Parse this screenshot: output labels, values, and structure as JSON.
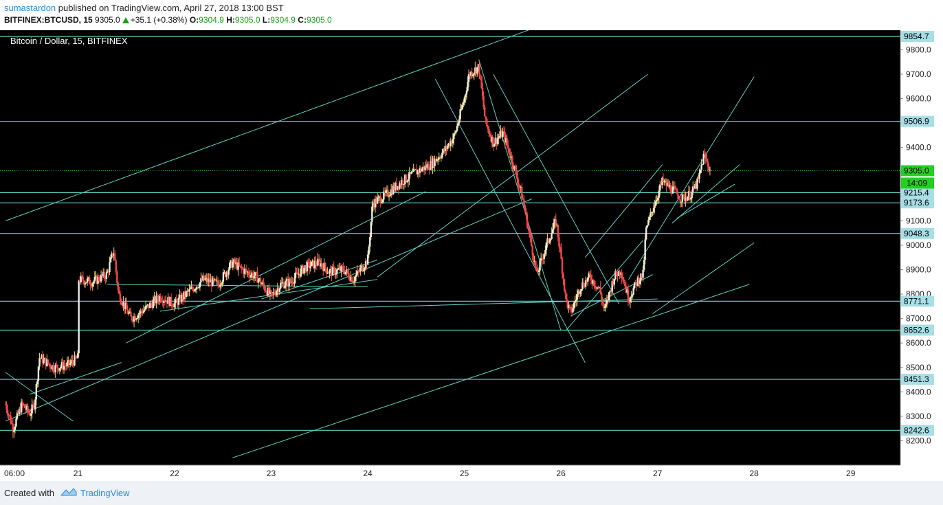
{
  "header": {
    "author": "sumastardon",
    "published_text": "published on TradingView.com, April 27, 2018 13:00 BST",
    "symbol": "BITFINEX:BTCUSD, 15",
    "last": "9305.0",
    "change": "+35.1 (+0.38%)",
    "o_label": "O:",
    "o_value": "9304.9",
    "h_label": "H:",
    "h_value": "9305.0",
    "l_label": "L:",
    "l_value": "9304.9",
    "c_label": "C:",
    "c_value": "9305.0"
  },
  "footer": {
    "created_label": "Created with",
    "brand": "TradingView"
  },
  "colors": {
    "background": "#000000",
    "up_candle": "#f0f0f0",
    "down_candle": "#b0b0b0",
    "line": "#5fd3c4",
    "level_label_bg": "#a8dfe6",
    "current_price_bg": "#21d021",
    "accent_blue": "#2a8ad6"
  },
  "chart_data": {
    "type": "candlestick",
    "title": "Bitcoin / Dollar, 15, BITFINEX",
    "interval": "15",
    "exchange": "BITFINEX",
    "ylim": [
      8100,
      9880
    ],
    "y_ticks": [
      8200,
      8300,
      8400,
      8500,
      8600,
      8700,
      8800,
      8900,
      9000,
      9100,
      9200,
      9300,
      9400,
      9500,
      9600,
      9700,
      9800
    ],
    "x_ticks": [
      "06:00",
      "21",
      "22",
      "23",
      "24",
      "25",
      "26",
      "27",
      "28",
      "29"
    ],
    "x_tick_days": [
      20.25,
      21,
      22,
      23,
      24,
      25,
      26,
      27,
      28,
      29
    ],
    "xlim_days": [
      20.25,
      29.5
    ],
    "horizontal_levels": [
      9854.7,
      9506.9,
      9215.4,
      9173.6,
      9048.3,
      8771.1,
      8652.6,
      8451.3,
      8242.6
    ],
    "current_price": 9305.0,
    "countdown": "14:09",
    "path_points": [
      [
        20.25,
        8350
      ],
      [
        20.33,
        8250
      ],
      [
        20.42,
        8350
      ],
      [
        20.5,
        8310
      ],
      [
        20.55,
        8350
      ],
      [
        20.6,
        8540
      ],
      [
        20.75,
        8500
      ],
      [
        20.9,
        8510
      ],
      [
        21.0,
        8540
      ],
      [
        21.0,
        8860
      ],
      [
        21.15,
        8850
      ],
      [
        21.3,
        8880
      ],
      [
        21.37,
        8980
      ],
      [
        21.42,
        8800
      ],
      [
        21.55,
        8700
      ],
      [
        21.7,
        8740
      ],
      [
        21.85,
        8790
      ],
      [
        22.0,
        8760
      ],
      [
        22.15,
        8810
      ],
      [
        22.3,
        8860
      ],
      [
        22.45,
        8840
      ],
      [
        22.6,
        8930
      ],
      [
        22.7,
        8900
      ],
      [
        22.85,
        8870
      ],
      [
        23.0,
        8790
      ],
      [
        23.1,
        8840
      ],
      [
        23.2,
        8850
      ],
      [
        23.35,
        8910
      ],
      [
        23.5,
        8930
      ],
      [
        23.6,
        8890
      ],
      [
        23.75,
        8900
      ],
      [
        23.85,
        8860
      ],
      [
        24.0,
        8940
      ],
      [
        24.05,
        9170
      ],
      [
        24.2,
        9210
      ],
      [
        24.35,
        9260
      ],
      [
        24.5,
        9300
      ],
      [
        24.65,
        9330
      ],
      [
        24.8,
        9390
      ],
      [
        24.9,
        9450
      ],
      [
        25.0,
        9600
      ],
      [
        25.05,
        9700
      ],
      [
        25.15,
        9730
      ],
      [
        25.22,
        9500
      ],
      [
        25.3,
        9420
      ],
      [
        25.4,
        9460
      ],
      [
        25.5,
        9340
      ],
      [
        25.6,
        9200
      ],
      [
        25.68,
        9030
      ],
      [
        25.75,
        8880
      ],
      [
        25.85,
        9000
      ],
      [
        25.95,
        9100
      ],
      [
        26.0,
        8950
      ],
      [
        26.05,
        8780
      ],
      [
        26.1,
        8720
      ],
      [
        26.2,
        8830
      ],
      [
        26.3,
        8870
      ],
      [
        26.4,
        8820
      ],
      [
        26.45,
        8730
      ],
      [
        26.55,
        8870
      ],
      [
        26.62,
        8900
      ],
      [
        26.7,
        8780
      ],
      [
        26.8,
        8860
      ],
      [
        26.85,
        8880
      ],
      [
        26.88,
        9060
      ],
      [
        26.95,
        9150
      ],
      [
        27.05,
        9260
      ],
      [
        27.15,
        9230
      ],
      [
        27.25,
        9190
      ],
      [
        27.35,
        9210
      ],
      [
        27.42,
        9260
      ],
      [
        27.48,
        9370
      ],
      [
        27.52,
        9330
      ],
      [
        27.55,
        9305
      ]
    ],
    "trend_lines": [
      [
        [
          20.25,
          9100
        ],
        [
          25.8,
          9900
        ]
      ],
      [
        [
          20.25,
          8280
        ],
        [
          25.7,
          9190
        ]
      ],
      [
        [
          20.25,
          8480
        ],
        [
          20.95,
          8280
        ]
      ],
      [
        [
          20.5,
          8390
        ],
        [
          21.45,
          8520
        ]
      ],
      [
        [
          21.3,
          8840
        ],
        [
          24.0,
          8830
        ]
      ],
      [
        [
          21.5,
          8600
        ],
        [
          24.6,
          9220
        ]
      ],
      [
        [
          21.85,
          8730
        ],
        [
          24.1,
          8860
        ]
      ],
      [
        [
          22.9,
          8780
        ],
        [
          24.1,
          8940
        ]
      ],
      [
        [
          24.1,
          8870
        ],
        [
          26.9,
          9700
        ]
      ],
      [
        [
          23.4,
          8740
        ],
        [
          27.0,
          8780
        ]
      ],
      [
        [
          24.7,
          9680
        ],
        [
          26.25,
          8520
        ]
      ],
      [
        [
          25.15,
          9760
        ],
        [
          26.0,
          8650
        ]
      ],
      [
        [
          25.3,
          9700
        ],
        [
          26.6,
          8760
        ]
      ],
      [
        [
          26.05,
          8650
        ],
        [
          26.85,
          9020
        ]
      ],
      [
        [
          26.1,
          8710
        ],
        [
          26.95,
          8880
        ]
      ],
      [
        [
          26.25,
          8950
        ],
        [
          27.05,
          9330
        ]
      ],
      [
        [
          26.7,
          8860
        ],
        [
          28.0,
          9690
        ]
      ],
      [
        [
          26.95,
          8720
        ],
        [
          28.0,
          9010
        ]
      ],
      [
        [
          27.15,
          9090
        ],
        [
          27.85,
          9330
        ]
      ],
      [
        [
          27.2,
          9110
        ],
        [
          27.8,
          9250
        ]
      ],
      [
        [
          22.6,
          8130
        ],
        [
          27.95,
          8840
        ]
      ]
    ]
  }
}
